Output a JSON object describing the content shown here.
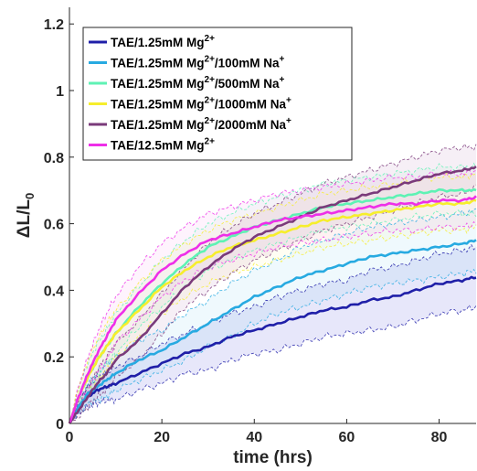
{
  "chart_data": {
    "type": "line",
    "xlabel": "time (hrs)",
    "ylabel": "ΔL/L0",
    "ylabel_parts": {
      "main": "ΔL/L",
      "sub": "0"
    },
    "xlim": [
      0,
      88
    ],
    "ylim": [
      0,
      1.25
    ],
    "xticks": [
      0,
      20,
      40,
      60,
      80
    ],
    "yticks": [
      0,
      0.2,
      0.4,
      0.6,
      0.8,
      1,
      1.2
    ],
    "ytick_labels": [
      "0",
      "0.2",
      "0.4",
      "0.6",
      "0.8",
      "1",
      "1.2"
    ],
    "grid": false,
    "legend_position": "top-left",
    "x": [
      0,
      2,
      4,
      6,
      8,
      10,
      15,
      20,
      25,
      30,
      35,
      40,
      45,
      50,
      55,
      60,
      65,
      70,
      75,
      80,
      85,
      88
    ],
    "series": [
      {
        "name": "TAE/1.25mM Mg2+",
        "legend": {
          "text": "TAE/1.25mM Mg",
          "sup": "2+",
          "suffix": "",
          "sup2": ""
        },
        "color": "#1f1fa8",
        "band_color": "#3b3bd6",
        "values": [
          0,
          0.05,
          0.08,
          0.1,
          0.11,
          0.12,
          0.15,
          0.18,
          0.21,
          0.23,
          0.26,
          0.28,
          0.3,
          0.32,
          0.34,
          0.35,
          0.37,
          0.38,
          0.4,
          0.42,
          0.43,
          0.44
        ],
        "spread": [
          0,
          0.02,
          0.03,
          0.04,
          0.04,
          0.05,
          0.05,
          0.06,
          0.06,
          0.07,
          0.07,
          0.07,
          0.08,
          0.08,
          0.08,
          0.08,
          0.09,
          0.09,
          0.09,
          0.09,
          0.09,
          0.09
        ]
      },
      {
        "name": "TAE/1.25mM Mg2+/100mM Na+",
        "legend": {
          "text": "TAE/1.25mM Mg",
          "sup": "2+",
          "suffix": "/100mM Na",
          "sup2": "+"
        },
        "color": "#27aae1",
        "band_color": "#7fcdf0",
        "values": [
          0,
          0.05,
          0.09,
          0.11,
          0.13,
          0.15,
          0.19,
          0.22,
          0.26,
          0.3,
          0.34,
          0.38,
          0.41,
          0.44,
          0.46,
          0.48,
          0.5,
          0.51,
          0.52,
          0.53,
          0.54,
          0.55
        ],
        "spread": [
          0,
          0.02,
          0.03,
          0.04,
          0.05,
          0.05,
          0.06,
          0.06,
          0.07,
          0.07,
          0.08,
          0.08,
          0.08,
          0.09,
          0.09,
          0.09,
          0.09,
          0.09,
          0.09,
          0.09,
          0.09,
          0.09
        ]
      },
      {
        "name": "TAE/1.25mM Mg2+/500mM Na+",
        "legend": {
          "text": "TAE/1.25mM Mg",
          "sup": "2+",
          "suffix": "/500mM Na",
          "sup2": "+"
        },
        "color": "#5ef2b4",
        "band_color": "#a9f7d6",
        "values": [
          0,
          0.08,
          0.14,
          0.19,
          0.23,
          0.27,
          0.35,
          0.42,
          0.48,
          0.53,
          0.56,
          0.59,
          0.61,
          0.63,
          0.65,
          0.66,
          0.67,
          0.68,
          0.69,
          0.7,
          0.7,
          0.7
        ],
        "spread": [
          0,
          0.03,
          0.04,
          0.05,
          0.05,
          0.06,
          0.06,
          0.07,
          0.07,
          0.07,
          0.07,
          0.07,
          0.07,
          0.07,
          0.07,
          0.07,
          0.07,
          0.07,
          0.07,
          0.07,
          0.07,
          0.07
        ]
      },
      {
        "name": "TAE/1.25mM Mg2+/1000mM Na+",
        "legend": {
          "text": "TAE/1.25mM Mg",
          "sup": "2+",
          "suffix": "/1000mM Na",
          "sup2": "+"
        },
        "color": "#f6ee2c",
        "band_color": "#fbf59a",
        "values": [
          0,
          0.08,
          0.14,
          0.19,
          0.23,
          0.27,
          0.34,
          0.41,
          0.46,
          0.5,
          0.53,
          0.55,
          0.57,
          0.59,
          0.61,
          0.62,
          0.63,
          0.64,
          0.65,
          0.66,
          0.66,
          0.67
        ],
        "spread": [
          0,
          0.03,
          0.05,
          0.06,
          0.07,
          0.07,
          0.08,
          0.08,
          0.08,
          0.08,
          0.08,
          0.08,
          0.08,
          0.08,
          0.08,
          0.08,
          0.08,
          0.08,
          0.08,
          0.08,
          0.08,
          0.08
        ]
      },
      {
        "name": "TAE/1.25mM Mg2+/2000mM Na+",
        "legend": {
          "text": "TAE/1.25mM Mg",
          "sup": "2+",
          "suffix": "/2000mM Na",
          "sup2": "+"
        },
        "color": "#7a3a7a",
        "band_color": "#b37fb3",
        "values": [
          0,
          0.04,
          0.08,
          0.12,
          0.15,
          0.19,
          0.25,
          0.33,
          0.41,
          0.47,
          0.52,
          0.56,
          0.59,
          0.62,
          0.65,
          0.67,
          0.69,
          0.71,
          0.73,
          0.75,
          0.76,
          0.77
        ],
        "spread": [
          0,
          0.02,
          0.03,
          0.04,
          0.05,
          0.05,
          0.06,
          0.06,
          0.06,
          0.07,
          0.07,
          0.07,
          0.07,
          0.07,
          0.07,
          0.07,
          0.07,
          0.07,
          0.07,
          0.07,
          0.07,
          0.06
        ]
      },
      {
        "name": "TAE/12.5mM Mg2+",
        "legend": {
          "text": "TAE/12.5mM Mg",
          "sup": "2+",
          "suffix": "",
          "sup2": ""
        },
        "color": "#ee2fe8",
        "band_color": "#f59bf0",
        "values": [
          0,
          0.08,
          0.15,
          0.21,
          0.26,
          0.31,
          0.39,
          0.46,
          0.51,
          0.55,
          0.57,
          0.59,
          0.61,
          0.62,
          0.63,
          0.64,
          0.65,
          0.66,
          0.66,
          0.67,
          0.67,
          0.68
        ],
        "spread": [
          0,
          0.03,
          0.05,
          0.06,
          0.07,
          0.07,
          0.08,
          0.08,
          0.08,
          0.08,
          0.08,
          0.08,
          0.08,
          0.08,
          0.08,
          0.08,
          0.08,
          0.08,
          0.08,
          0.08,
          0.08,
          0.08
        ]
      }
    ]
  }
}
